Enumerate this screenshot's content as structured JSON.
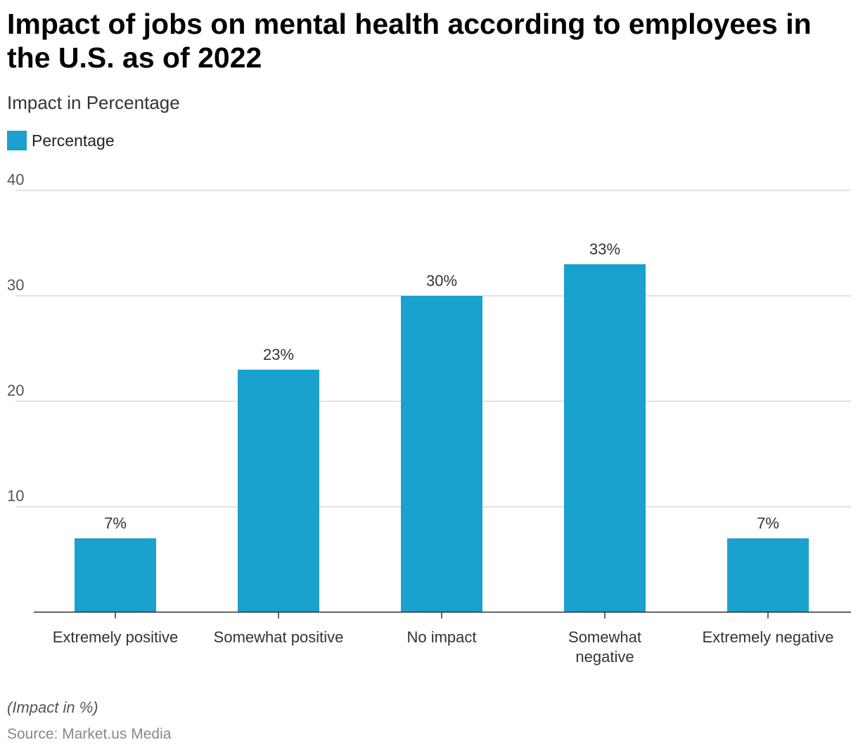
{
  "title": "Impact of jobs on mental health according to employees in the U.S. as of 2022",
  "subtitle": "Impact in Percentage",
  "note": "(Impact in %)",
  "source": "Source: Market.us Media",
  "colors": {
    "bar": "#1aa1cd",
    "grid": "#d9d9d9",
    "axis": "#333333"
  },
  "chart_data": {
    "type": "bar",
    "title": "Impact of jobs on mental health according to employees in the U.S. as of 2022",
    "ylabel": "Impact in Percentage",
    "xlabel": "",
    "legend": {
      "entries": [
        "Percentage"
      ],
      "placement": "top-left"
    },
    "categories": [
      "Extremely positive",
      "Somewhat positive",
      "No impact",
      "Somewhat negative",
      "Extremely negative"
    ],
    "series": [
      {
        "name": "Percentage",
        "values": [
          7,
          23,
          30,
          33,
          7
        ]
      }
    ],
    "data_labels": [
      "7%",
      "23%",
      "30%",
      "33%",
      "7%"
    ],
    "ylim": [
      0,
      40
    ],
    "yticks": [
      10,
      20,
      30,
      40
    ],
    "grid": true
  }
}
